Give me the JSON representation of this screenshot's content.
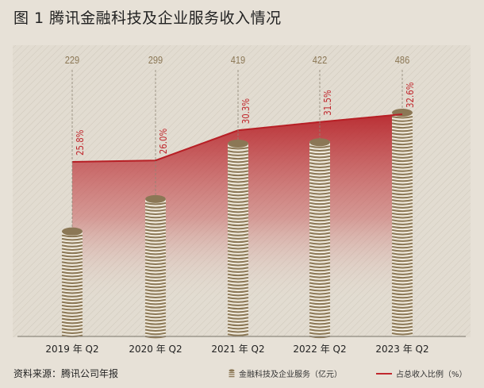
{
  "title": "图 1  腾讯金融科技及企业服务收入情况",
  "source": "资料来源：腾讯公司年报",
  "legend": {
    "bars": "金融科技及企业服务（亿元）",
    "line": "占总收入比例（%）"
  },
  "colors": {
    "line": "#c0272d",
    "coin": "#8b7755",
    "bg": "#e7e1d7"
  },
  "chart_data": {
    "type": "bar+line",
    "title": "图 1  腾讯金融科技及企业服务收入情况",
    "categories": [
      "2019 年 Q2",
      "2020 年 Q2",
      "2021 年 Q2",
      "2022 年 Q2",
      "2023 年 Q2"
    ],
    "series": [
      {
        "name": "金融科技及企业服务（亿元）",
        "type": "bar",
        "values": [
          229,
          299,
          419,
          422,
          486
        ],
        "labels": [
          "229",
          "299",
          "419",
          "422",
          "486"
        ]
      },
      {
        "name": "占总收入比例（%）",
        "type": "line",
        "values": [
          25.8,
          26.0,
          30.3,
          31.5,
          32.6
        ],
        "labels": [
          "25.8%",
          "26.0%",
          "30.3%",
          "31.5%",
          "32.6%"
        ]
      }
    ],
    "legend_position": "bottom-right"
  }
}
